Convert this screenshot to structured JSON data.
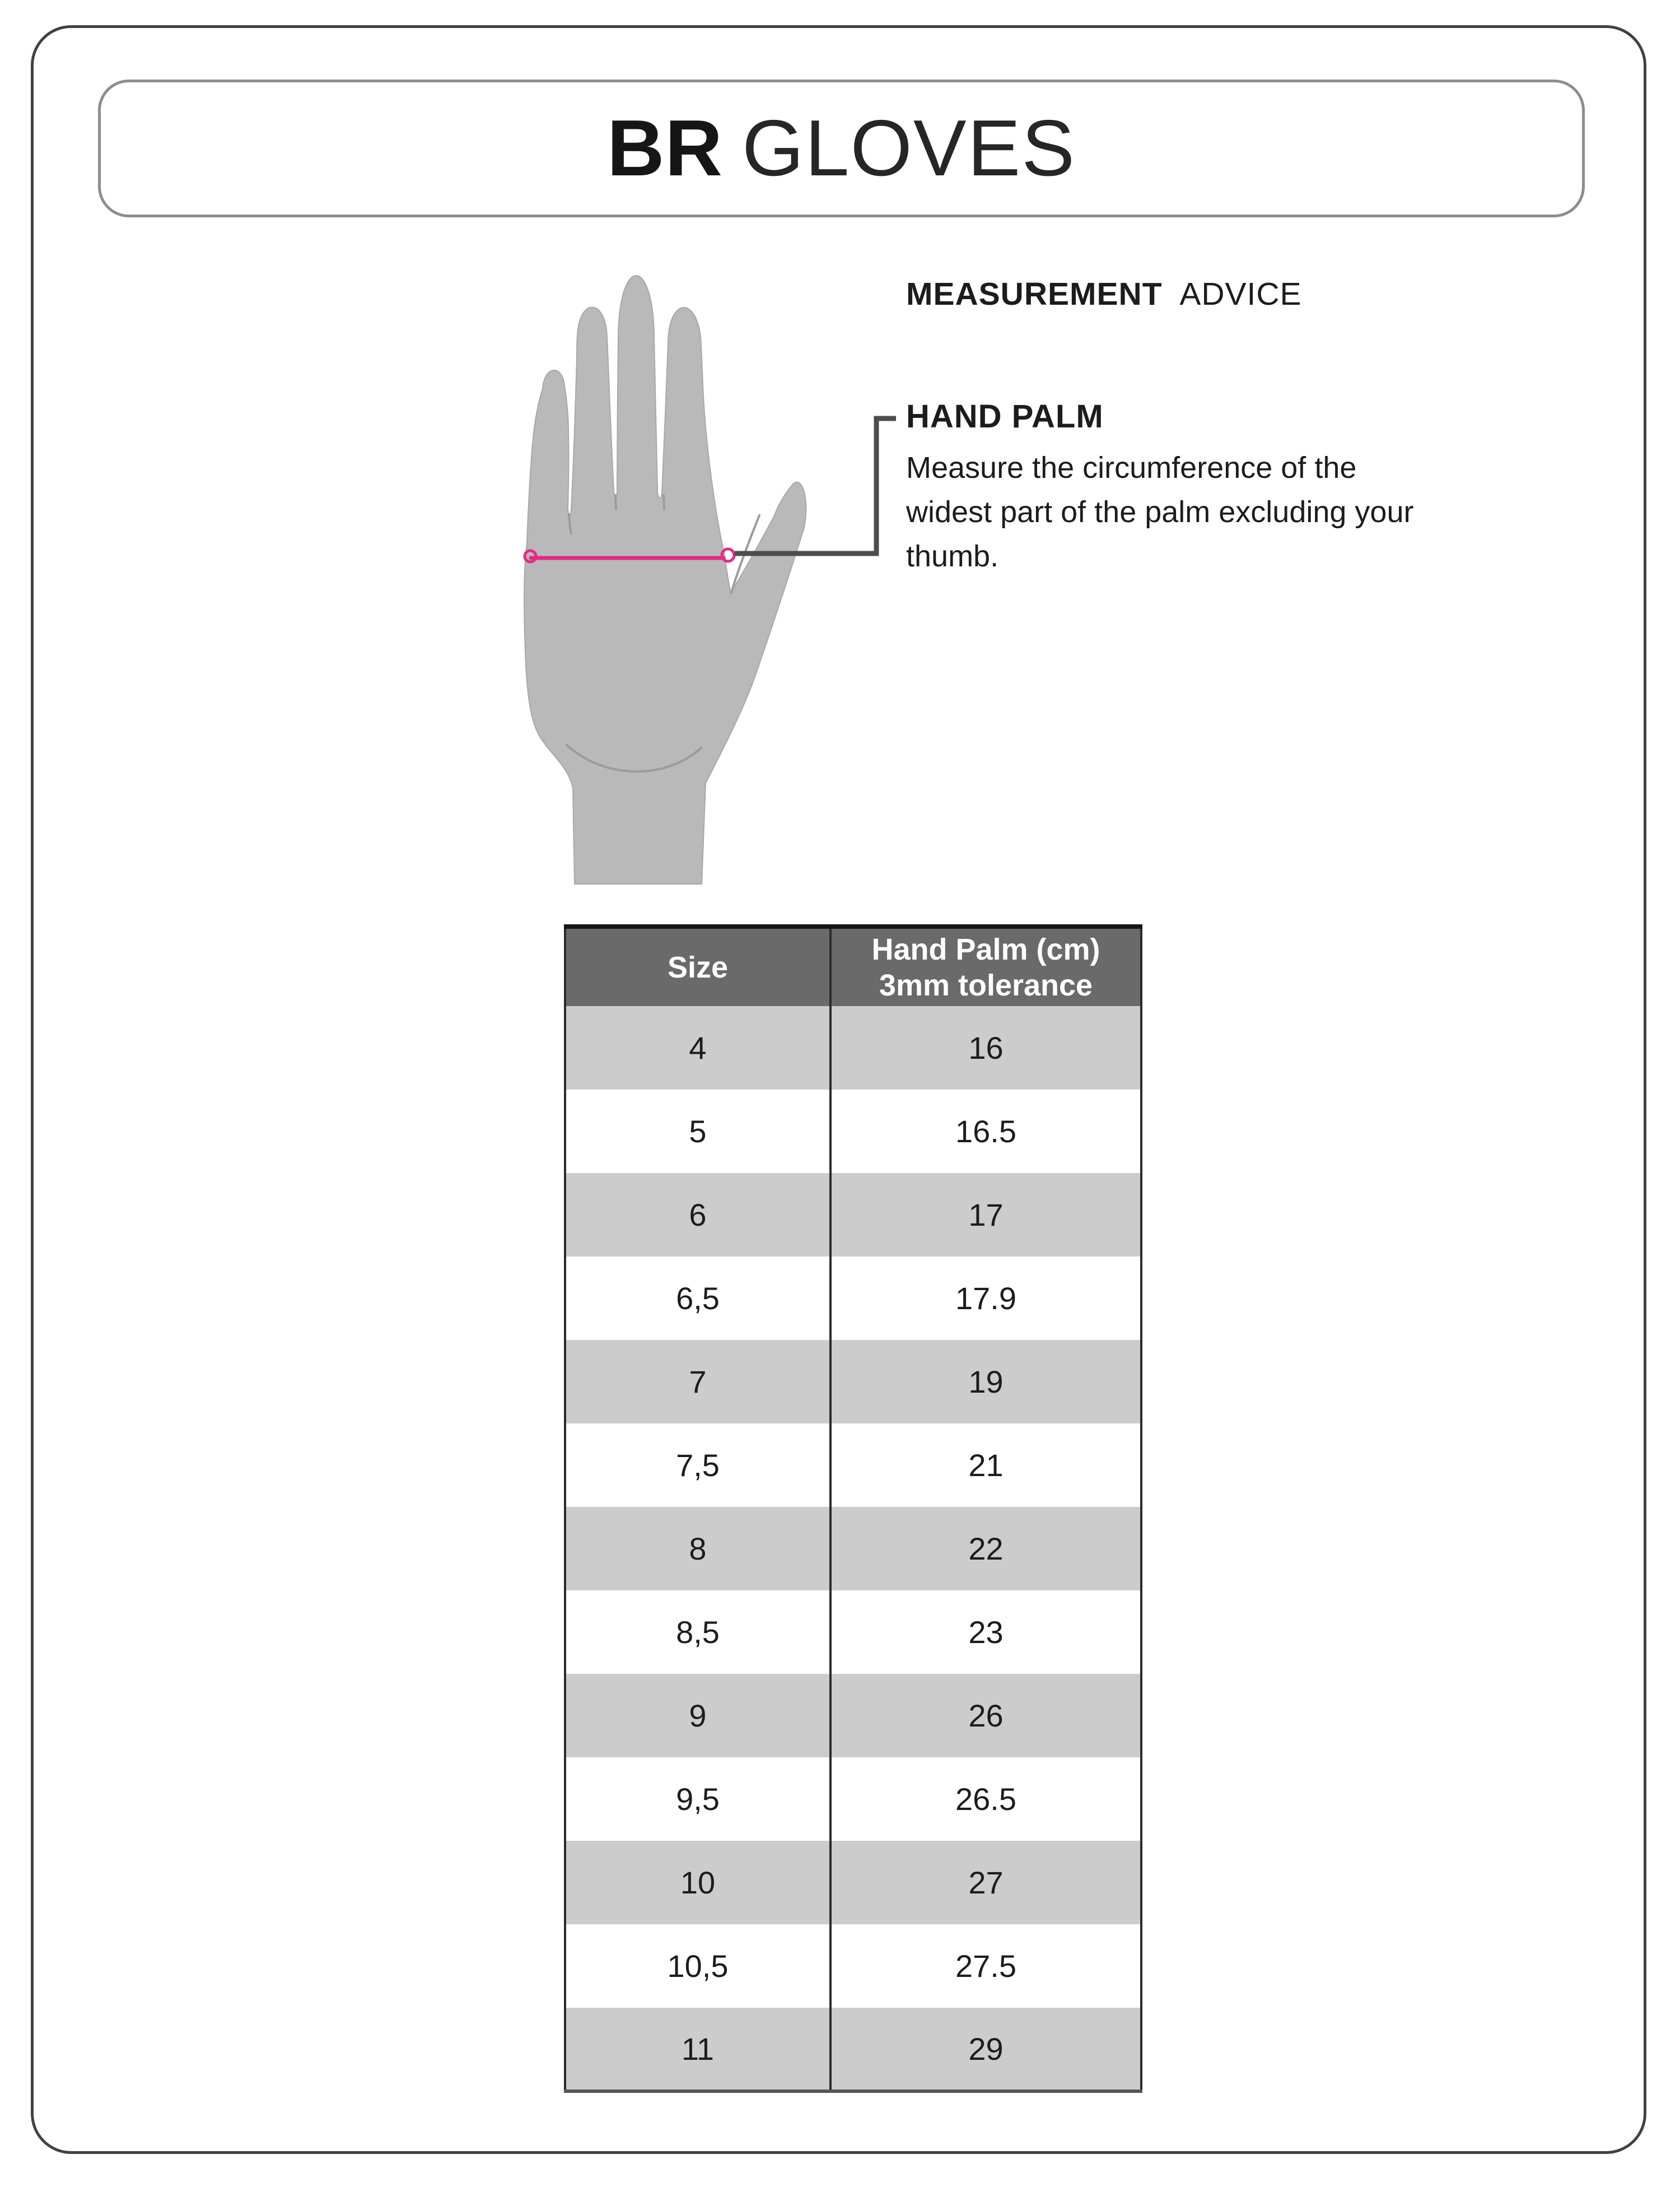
{
  "colors": {
    "accent_pink": "#e62a84",
    "table_header_bg": "#6a6a6a",
    "table_row_alt_bg": "#cccccc",
    "hand_fill": "#b9b9b9",
    "frame_border": "#414141"
  },
  "title": {
    "brand": "BR",
    "product": "GLOVES"
  },
  "measurement_advice": {
    "heading_bold": "MEASUREMENT",
    "heading_regular": "ADVICE"
  },
  "hand_palm": {
    "heading": "HAND PALM",
    "description_lines": [
      "Measure the circumference of the",
      "widest part of the palm excluding your",
      "thumb."
    ]
  },
  "table": {
    "col1_header": "Size",
    "col2_header_line1": "Hand Palm (cm)",
    "col2_header_line2": "3mm tolerance",
    "rows": [
      {
        "size": "4",
        "palm_cm": "16"
      },
      {
        "size": "5",
        "palm_cm": "16.5"
      },
      {
        "size": "6",
        "palm_cm": "17"
      },
      {
        "size": "6,5",
        "palm_cm": "17.9"
      },
      {
        "size": "7",
        "palm_cm": "19"
      },
      {
        "size": "7,5",
        "palm_cm": "21"
      },
      {
        "size": "8",
        "palm_cm": "22"
      },
      {
        "size": "8,5",
        "palm_cm": "23"
      },
      {
        "size": "9",
        "palm_cm": "26"
      },
      {
        "size": "9,5",
        "palm_cm": "26.5"
      },
      {
        "size": "10",
        "palm_cm": "27"
      },
      {
        "size": "10,5",
        "palm_cm": "27.5"
      },
      {
        "size": "11",
        "palm_cm": "29"
      }
    ]
  },
  "chart_data": {
    "type": "table",
    "title": "BR GLOVES",
    "subtitle": "MEASUREMENT ADVICE",
    "columns": [
      "Size",
      "Hand Palm (cm) 3mm tolerance"
    ],
    "categories": [
      "4",
      "5",
      "6",
      "6,5",
      "7",
      "7,5",
      "8",
      "8,5",
      "9",
      "9,5",
      "10",
      "10,5",
      "11"
    ],
    "values": [
      16,
      16.5,
      17,
      17.9,
      19,
      21,
      22,
      23,
      26,
      26.5,
      27,
      27.5,
      29
    ],
    "annotation": "Pink line on hand diagram marks palm circumference measurement location"
  }
}
